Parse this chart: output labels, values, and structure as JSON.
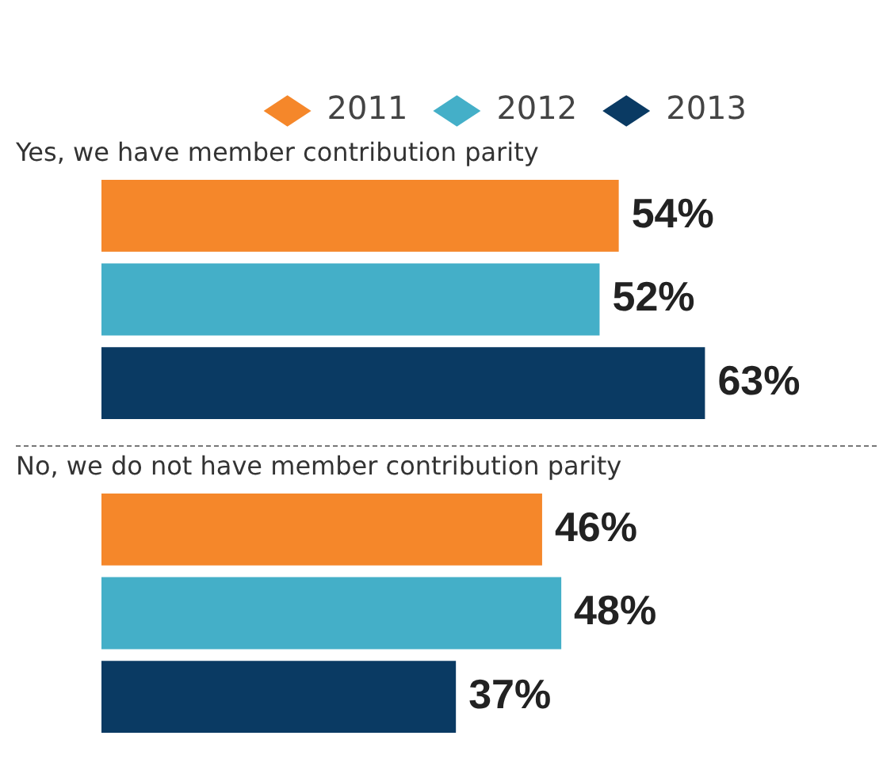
{
  "chart_data": {
    "type": "bar",
    "orientation": "horizontal",
    "categories": [
      "Yes, we have member contribution parity",
      "No, we do not have member contribution parity"
    ],
    "series": [
      {
        "name": "2011",
        "color": "#f5872a",
        "values": [
          54,
          46
        ],
        "value_labels": [
          "54%",
          "46%"
        ]
      },
      {
        "name": "2012",
        "color": "#44afc8",
        "values": [
          52,
          48
        ],
        "value_labels": [
          "52%",
          "48%"
        ]
      },
      {
        "name": "2013",
        "color": "#0a3a63",
        "values": [
          63,
          37
        ],
        "value_labels": [
          "63%",
          "37%"
        ]
      }
    ],
    "legend": "top right"
  }
}
